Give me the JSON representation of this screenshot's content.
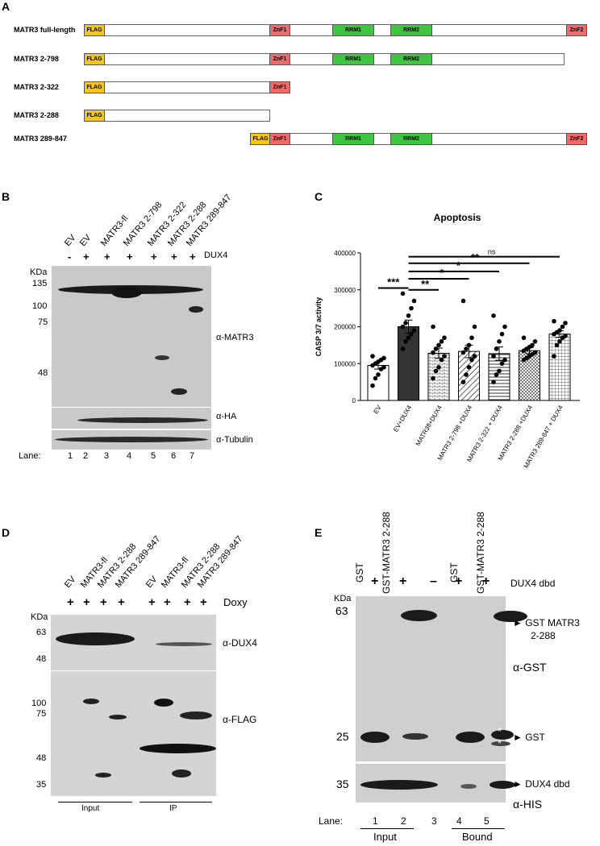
{
  "panels": {
    "a": "A",
    "b": "B",
    "c": "C",
    "d": "D",
    "e": "E"
  },
  "constructs": [
    {
      "name": "MATR3 full-length",
      "domains": [
        "FLAG",
        "ZnF1",
        "RRM1",
        "RRM2",
        "ZnF2"
      ]
    },
    {
      "name": "MATR3 2-798",
      "domains": [
        "FLAG",
        "ZnF1",
        "RRM1",
        "RRM2"
      ]
    },
    {
      "name": "MATR3 2-322",
      "domains": [
        "FLAG",
        "ZnF1"
      ]
    },
    {
      "name": "MATR3 2-288",
      "domains": [
        "FLAG"
      ]
    },
    {
      "name": "MATR3 289-847",
      "domains": [
        "FLAG",
        "ZnF1",
        "RRM1",
        "RRM2",
        "ZnF2"
      ]
    }
  ],
  "panel_b": {
    "lanes_top": [
      "EV",
      "EV",
      "MATR3-fl",
      "MATR3 2-798",
      "MATR3 2-322",
      "MATR3 2-288",
      "MATR3 289-847"
    ],
    "signs": [
      "-",
      "+",
      "+",
      "+",
      "+",
      "+",
      "+"
    ],
    "dux4": "DUX4",
    "kda": "KDa",
    "markers": [
      "135",
      "100",
      "75",
      "48"
    ],
    "antibodies": [
      "α-MATR3",
      "α-HA",
      "α-Tubulin"
    ],
    "lane_label": "Lane:",
    "lane_numbers": [
      "1",
      "2",
      "3",
      "4",
      "5",
      "6",
      "7"
    ]
  },
  "panel_c": {
    "chart_data": {
      "type": "bar",
      "title": "Apoptosis",
      "ylabel": "CASP 3/7 activity",
      "ylim": [
        0,
        400000
      ],
      "yticks": [
        "0",
        "100000",
        "200000",
        "300000",
        "400000"
      ],
      "categories": [
        "EV",
        "EV+DUX4",
        "MATR3fl+DUX4",
        "MATR3 2-798 +DUX4",
        "MATR3 2-322 + DUX4",
        "MATR3 2-288 +DUX4",
        "MATR3 289-847 + DUX4"
      ],
      "values": [
        95000,
        200000,
        128000,
        133000,
        127000,
        135000,
        180000
      ],
      "errors": [
        10000,
        18000,
        14000,
        17000,
        18000,
        8000,
        9000
      ],
      "points": [
        [
          40000,
          60000,
          70000,
          85000,
          90000,
          95000,
          100000,
          105000,
          110000,
          115000,
          120000
        ],
        [
          140000,
          160000,
          170000,
          180000,
          190000,
          200000,
          210000,
          230000,
          250000,
          270000,
          290000
        ],
        [
          60000,
          80000,
          90000,
          110000,
          120000,
          130000,
          140000,
          150000,
          160000,
          170000,
          200000
        ],
        [
          50000,
          70000,
          90000,
          110000,
          120000,
          130000,
          140000,
          150000,
          170000,
          200000,
          270000
        ],
        [
          50000,
          70000,
          80000,
          100000,
          110000,
          120000,
          140000,
          160000,
          180000,
          200000,
          230000
        ],
        [
          110000,
          115000,
          120000,
          125000,
          130000,
          135000,
          140000,
          145000,
          150000,
          160000,
          170000
        ],
        [
          120000,
          150000,
          160000,
          170000,
          175000,
          180000,
          185000,
          190000,
          200000,
          210000,
          215000
        ]
      ],
      "comparisons": [
        {
          "from": 0,
          "to": 1,
          "label": "***"
        },
        {
          "from": 1,
          "to": 2,
          "label": "**"
        },
        {
          "from": 1,
          "to": 3,
          "label": "*"
        },
        {
          "from": 1,
          "to": 4,
          "label": "*"
        },
        {
          "from": 1,
          "to": 5,
          "label": "**"
        },
        {
          "from": 1,
          "to": 6,
          "label": "ns"
        }
      ]
    }
  },
  "panel_d": {
    "lanes_top": [
      "EV",
      "MATR3-fl",
      "MATR3 2-288",
      "MATR3 289-847",
      "EV",
      "MATR3-fl",
      "MATR3 2-288",
      "MATR3 289-847"
    ],
    "signs": [
      "+",
      "+",
      "+",
      "+",
      "+",
      "+",
      "+",
      "+"
    ],
    "doxy": "Doxy",
    "kda": "KDa",
    "markers_top": [
      "63",
      "48"
    ],
    "markers_bottom": [
      "100",
      "75",
      "48",
      "35"
    ],
    "antibodies": [
      "α-DUX4",
      "α-FLAG"
    ],
    "groups": [
      "Input",
      "IP"
    ]
  },
  "panel_e": {
    "lanes_top": [
      "GST",
      "GST-MATR3 2-288",
      "GST",
      "GST-MATR3 2-288"
    ],
    "signs": [
      "+",
      "+",
      "–",
      "+",
      "+"
    ],
    "dbd": "DUX4 dbd",
    "kda": "KDa",
    "markers": [
      "63",
      "25",
      "35"
    ],
    "right_labels": [
      "GST MATR3",
      "2-288",
      "α-GST",
      "GST",
      "DUX4 dbd",
      "α-HIS"
    ],
    "asterisk": "*",
    "lane_label": "Lane:",
    "lane_numbers": [
      "1",
      "2",
      "3",
      "4",
      "5"
    ],
    "groups": [
      "Input",
      "Bound"
    ]
  }
}
